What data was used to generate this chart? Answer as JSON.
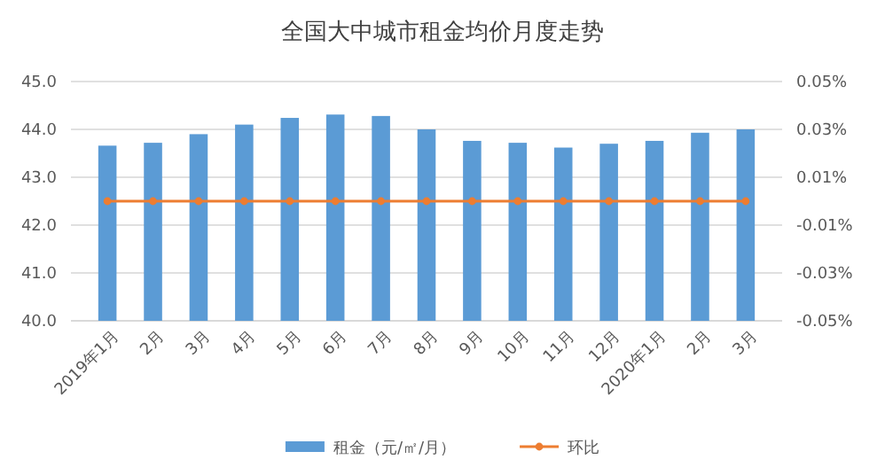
{
  "chart_data": {
    "type": "bar",
    "title": "全国大中城市租金均价月度走势",
    "categories": [
      "2019年1月",
      "2月",
      "3月",
      "4月",
      "5月",
      "6月",
      "7月",
      "8月",
      "9月",
      "10月",
      "11月",
      "12月",
      "2020年1月",
      "2月",
      "3月"
    ],
    "series": [
      {
        "name": "租金（元/㎡/月）",
        "color": "#5b9bd5",
        "values": [
          43.66,
          43.72,
          43.9,
          44.1,
          44.24,
          44.31,
          44.28,
          44.0,
          43.76,
          43.72,
          43.62,
          43.7,
          43.76,
          43.93,
          44.0
        ]
      },
      {
        "name": "环比",
        "type": "line",
        "axis": "y2",
        "color": "#ed7d31",
        "values": [
          0,
          0,
          0,
          0,
          0,
          0,
          0,
          0,
          0,
          0,
          0,
          0,
          0,
          0,
          0
        ]
      }
    ],
    "ylim": [
      40,
      45
    ],
    "yticks": [
      {
        "value": 40,
        "label": "40.0"
      },
      {
        "value": 41,
        "label": "41.0"
      },
      {
        "value": 42,
        "label": "42.0"
      },
      {
        "value": 43,
        "label": "43.0"
      },
      {
        "value": 44,
        "label": "44.0"
      },
      {
        "value": 45,
        "label": "45.0"
      }
    ],
    "y2lim": [
      -0.05,
      0.05
    ],
    "y2ticks": [
      {
        "value": -0.05,
        "label": "-0.05%"
      },
      {
        "value": -0.03,
        "label": "-0.03%"
      },
      {
        "value": -0.01,
        "label": "-0.01%"
      },
      {
        "value": 0.01,
        "label": "0.01%"
      },
      {
        "value": 0.03,
        "label": "0.03%"
      },
      {
        "value": 0.05,
        "label": "0.05%"
      }
    ],
    "grid": "y",
    "legend": "bottom",
    "marker": "circle"
  }
}
